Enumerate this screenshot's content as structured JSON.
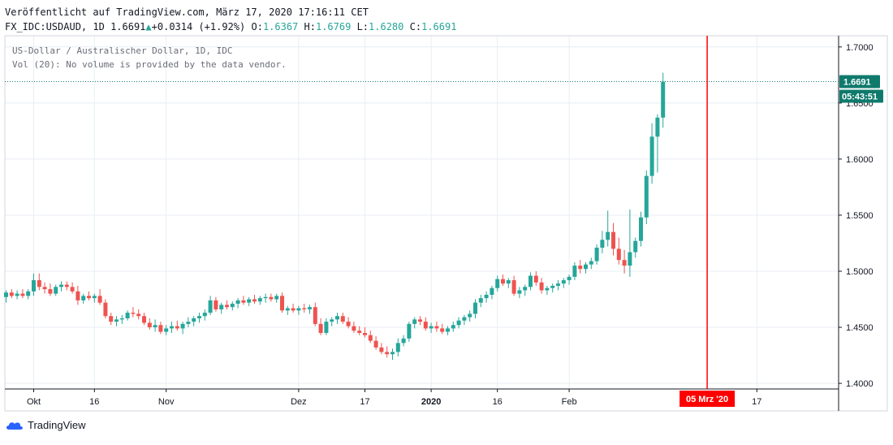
{
  "header": {
    "published": "Veröffentlicht auf TradingView.com, März 17, 2020 17:16:11 CET",
    "symbol": "FX_IDC:USDAUD, 1D",
    "last": "1.6691",
    "change": "+0.0314 (+1.92%)",
    "o_label": "O:",
    "o": "1.6367",
    "h_label": "H:",
    "h": "1.6769",
    "l_label": "L:",
    "l": "1.6280",
    "c_label": "C:",
    "c": "1.6691"
  },
  "legend": {
    "line1": "US-Dollar / Australischer Dollar, 1D, IDC",
    "line2": "Vol (20): No volume is provided by the data vendor."
  },
  "price_badge": "1.6691",
  "countdown_badge": "05:43:51",
  "crosshair_date_label": "05 Mrz '20",
  "footer": {
    "brand": "TradingView"
  },
  "colors": {
    "up": "#26a69a",
    "down": "#ef5350",
    "grid": "#e8eef3",
    "axis": "#131722",
    "badge": "#0f7a6c",
    "crosshair": "#ff0000"
  },
  "chart_data": {
    "type": "candlestick",
    "title": "US-Dollar / Australischer Dollar, 1D, IDC",
    "ylim": [
      1.395,
      1.71
    ],
    "yticks": [
      "1.4000",
      "1.4500",
      "1.5000",
      "1.5500",
      "1.6000",
      "1.6500",
      "1.7000"
    ],
    "ytick_values": [
      1.4,
      1.45,
      1.5,
      1.55,
      1.6,
      1.65,
      1.7
    ],
    "xticks": [
      {
        "label": "Okt",
        "index": 5
      },
      {
        "label": "16",
        "index": 16
      },
      {
        "label": "Nov",
        "index": 29
      },
      {
        "label": "Dez",
        "index": 53
      },
      {
        "label": "17",
        "index": 65
      },
      {
        "label": "2020",
        "index": 77
      },
      {
        "label": "16",
        "index": 89
      },
      {
        "label": "Feb",
        "index": 102
      },
      {
        "label": "17",
        "index": 136
      }
    ],
    "crosshair_index": 127,
    "candles": [
      [
        1.477,
        1.483,
        1.472,
        1.481
      ],
      [
        1.481,
        1.484,
        1.476,
        1.478
      ],
      [
        1.478,
        1.483,
        1.475,
        1.48
      ],
      [
        1.48,
        1.484,
        1.476,
        1.478
      ],
      [
        1.478,
        1.484,
        1.475,
        1.482
      ],
      [
        1.482,
        1.498,
        1.478,
        1.492
      ],
      [
        1.492,
        1.498,
        1.483,
        1.486
      ],
      [
        1.486,
        1.49,
        1.48,
        1.484
      ],
      [
        1.484,
        1.489,
        1.478,
        1.48
      ],
      [
        1.48,
        1.488,
        1.478,
        1.486
      ],
      [
        1.486,
        1.491,
        1.482,
        1.488
      ],
      [
        1.488,
        1.491,
        1.483,
        1.486
      ],
      [
        1.486,
        1.49,
        1.48,
        1.482
      ],
      [
        1.482,
        1.487,
        1.47,
        1.474
      ],
      [
        1.474,
        1.48,
        1.471,
        1.478
      ],
      [
        1.478,
        1.482,
        1.474,
        1.476
      ],
      [
        1.476,
        1.48,
        1.472,
        1.478
      ],
      [
        1.478,
        1.484,
        1.47,
        1.472
      ],
      [
        1.472,
        1.475,
        1.458,
        1.46
      ],
      [
        1.46,
        1.463,
        1.452,
        1.455
      ],
      [
        1.455,
        1.46,
        1.451,
        1.457
      ],
      [
        1.457,
        1.461,
        1.453,
        1.458
      ],
      [
        1.458,
        1.465,
        1.456,
        1.463
      ],
      [
        1.463,
        1.468,
        1.459,
        1.462
      ],
      [
        1.462,
        1.466,
        1.457,
        1.46
      ],
      [
        1.46,
        1.463,
        1.452,
        1.454
      ],
      [
        1.454,
        1.458,
        1.448,
        1.45
      ],
      [
        1.45,
        1.457,
        1.446,
        1.452
      ],
      [
        1.452,
        1.455,
        1.444,
        1.446
      ],
      [
        1.446,
        1.452,
        1.443,
        1.449
      ],
      [
        1.449,
        1.455,
        1.445,
        1.451
      ],
      [
        1.451,
        1.456,
        1.447,
        1.449
      ],
      [
        1.449,
        1.455,
        1.444,
        1.453
      ],
      [
        1.453,
        1.459,
        1.45,
        1.455
      ],
      [
        1.455,
        1.46,
        1.451,
        1.458
      ],
      [
        1.458,
        1.463,
        1.454,
        1.46
      ],
      [
        1.46,
        1.466,
        1.456,
        1.463
      ],
      [
        1.463,
        1.478,
        1.461,
        1.474
      ],
      [
        1.474,
        1.477,
        1.464,
        1.466
      ],
      [
        1.466,
        1.472,
        1.462,
        1.47
      ],
      [
        1.47,
        1.474,
        1.466,
        1.468
      ],
      [
        1.468,
        1.473,
        1.465,
        1.471
      ],
      [
        1.471,
        1.476,
        1.467,
        1.474
      ],
      [
        1.474,
        1.478,
        1.47,
        1.472
      ],
      [
        1.472,
        1.477,
        1.469,
        1.475
      ],
      [
        1.475,
        1.479,
        1.471,
        1.473
      ],
      [
        1.473,
        1.478,
        1.47,
        1.476
      ],
      [
        1.476,
        1.48,
        1.472,
        1.477
      ],
      [
        1.477,
        1.48,
        1.473,
        1.475
      ],
      [
        1.475,
        1.48,
        1.472,
        1.478
      ],
      [
        1.478,
        1.481,
        1.463,
        1.465
      ],
      [
        1.465,
        1.469,
        1.461,
        1.467
      ],
      [
        1.467,
        1.471,
        1.463,
        1.465
      ],
      [
        1.465,
        1.469,
        1.461,
        1.467
      ],
      [
        1.467,
        1.471,
        1.463,
        1.466
      ],
      [
        1.466,
        1.47,
        1.462,
        1.468
      ],
      [
        1.468,
        1.472,
        1.451,
        1.453
      ],
      [
        1.453,
        1.458,
        1.443,
        1.445
      ],
      [
        1.445,
        1.458,
        1.443,
        1.455
      ],
      [
        1.455,
        1.459,
        1.451,
        1.457
      ],
      [
        1.457,
        1.463,
        1.453,
        1.46
      ],
      [
        1.46,
        1.463,
        1.453,
        1.455
      ],
      [
        1.455,
        1.459,
        1.449,
        1.451
      ],
      [
        1.451,
        1.455,
        1.445,
        1.447
      ],
      [
        1.447,
        1.451,
        1.443,
        1.445
      ],
      [
        1.445,
        1.45,
        1.441,
        1.443
      ],
      [
        1.443,
        1.447,
        1.436,
        1.438
      ],
      [
        1.438,
        1.442,
        1.43,
        1.432
      ],
      [
        1.432,
        1.436,
        1.426,
        1.428
      ],
      [
        1.428,
        1.433,
        1.423,
        1.426
      ],
      [
        1.426,
        1.431,
        1.421,
        1.428
      ],
      [
        1.428,
        1.44,
        1.424,
        1.436
      ],
      [
        1.436,
        1.443,
        1.433,
        1.44
      ],
      [
        1.44,
        1.455,
        1.437,
        1.453
      ],
      [
        1.453,
        1.459,
        1.449,
        1.457
      ],
      [
        1.457,
        1.46,
        1.452,
        1.455
      ],
      [
        1.455,
        1.459,
        1.447,
        1.449
      ],
      [
        1.449,
        1.454,
        1.445,
        1.451
      ],
      [
        1.451,
        1.455,
        1.446,
        1.449
      ],
      [
        1.449,
        1.453,
        1.444,
        1.446
      ],
      [
        1.446,
        1.451,
        1.443,
        1.449
      ],
      [
        1.449,
        1.455,
        1.446,
        1.452
      ],
      [
        1.452,
        1.459,
        1.449,
        1.456
      ],
      [
        1.456,
        1.461,
        1.452,
        1.459
      ],
      [
        1.459,
        1.465,
        1.455,
        1.462
      ],
      [
        1.462,
        1.475,
        1.458,
        1.472
      ],
      [
        1.472,
        1.479,
        1.468,
        1.476
      ],
      [
        1.476,
        1.482,
        1.472,
        1.479
      ],
      [
        1.479,
        1.487,
        1.475,
        1.485
      ],
      [
        1.485,
        1.496,
        1.482,
        1.493
      ],
      [
        1.493,
        1.497,
        1.487,
        1.489
      ],
      [
        1.489,
        1.494,
        1.485,
        1.492
      ],
      [
        1.492,
        1.496,
        1.478,
        1.48
      ],
      [
        1.48,
        1.486,
        1.476,
        1.483
      ],
      [
        1.483,
        1.488,
        1.478,
        1.486
      ],
      [
        1.486,
        1.499,
        1.483,
        1.496
      ],
      [
        1.496,
        1.5,
        1.487,
        1.49
      ],
      [
        1.49,
        1.494,
        1.48,
        1.483
      ],
      [
        1.483,
        1.487,
        1.479,
        1.485
      ],
      [
        1.485,
        1.489,
        1.481,
        1.487
      ],
      [
        1.487,
        1.492,
        1.483,
        1.489
      ],
      [
        1.489,
        1.494,
        1.485,
        1.492
      ],
      [
        1.492,
        1.497,
        1.488,
        1.495
      ],
      [
        1.495,
        1.508,
        1.492,
        1.505
      ],
      [
        1.505,
        1.51,
        1.498,
        1.502
      ],
      [
        1.502,
        1.508,
        1.498,
        1.506
      ],
      [
        1.506,
        1.512,
        1.502,
        1.509
      ],
      [
        1.509,
        1.524,
        1.506,
        1.521
      ],
      [
        1.521,
        1.536,
        1.516,
        1.528
      ],
      [
        1.528,
        1.554,
        1.522,
        1.535
      ],
      [
        1.535,
        1.543,
        1.514,
        1.52
      ],
      [
        1.52,
        1.53,
        1.506,
        1.51
      ],
      [
        1.51,
        1.519,
        1.498,
        1.505
      ],
      [
        1.505,
        1.555,
        1.495,
        1.517
      ],
      [
        1.517,
        1.53,
        1.512,
        1.527
      ],
      [
        1.527,
        1.553,
        1.522,
        1.548
      ],
      [
        1.548,
        1.59,
        1.542,
        1.585
      ],
      [
        1.585,
        1.632,
        1.578,
        1.62
      ],
      [
        1.62,
        1.64,
        1.588,
        1.637
      ],
      [
        1.637,
        1.677,
        1.628,
        1.669
      ]
    ]
  }
}
